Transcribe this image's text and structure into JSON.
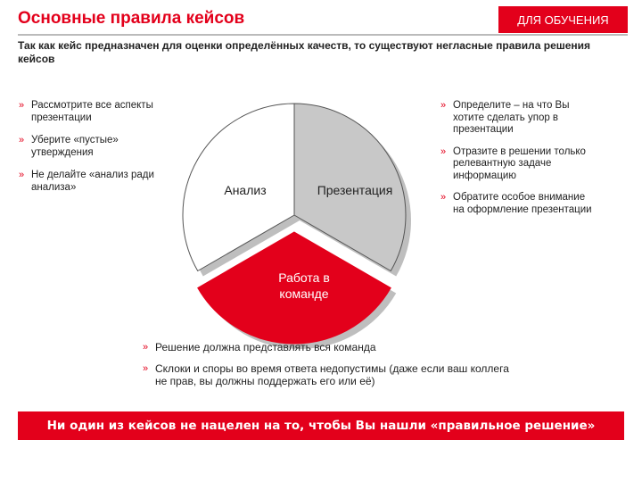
{
  "header": {
    "title": "Основные правила кейсов",
    "badge": "ДЛЯ ОБУЧЕНИЯ"
  },
  "subtitle": "Так как кейс предназначен для оценки определённых качеств, то существуют негласные правила решения кейсов",
  "bullet_icon": "double-chevron-right",
  "left_points": [
    "Рассмотрите все аспекты презентации",
    "Уберите «пустые» утверждения",
    "Не делайте «анализ ради анализа»"
  ],
  "right_points": [
    "Определите – на что Вы хотите сделать упор в презентации",
    "Отразите в решении только релевантную задаче информацию",
    "Обратите особое внимание на оформление презентации"
  ],
  "diagram": {
    "segments": [
      {
        "label": "Анализ",
        "color": "#ffffff"
      },
      {
        "label": "Презентация",
        "color": "#c8c8c8"
      },
      {
        "label_lines": [
          "Работа в",
          "команде"
        ],
        "color": "#e3001b"
      }
    ]
  },
  "bottom_points": [
    "Решение должна представлять вся команда",
    "Склоки и споры во время ответа недопустимы (даже если ваш коллега не прав, вы должны поддержать его или её)"
  ],
  "banner": "Ни один из кейсов не нацелен на то, чтобы Вы нашли «правильное решение»",
  "colors": {
    "accent": "#e3001b",
    "grey_segment": "#c8c8c8"
  }
}
